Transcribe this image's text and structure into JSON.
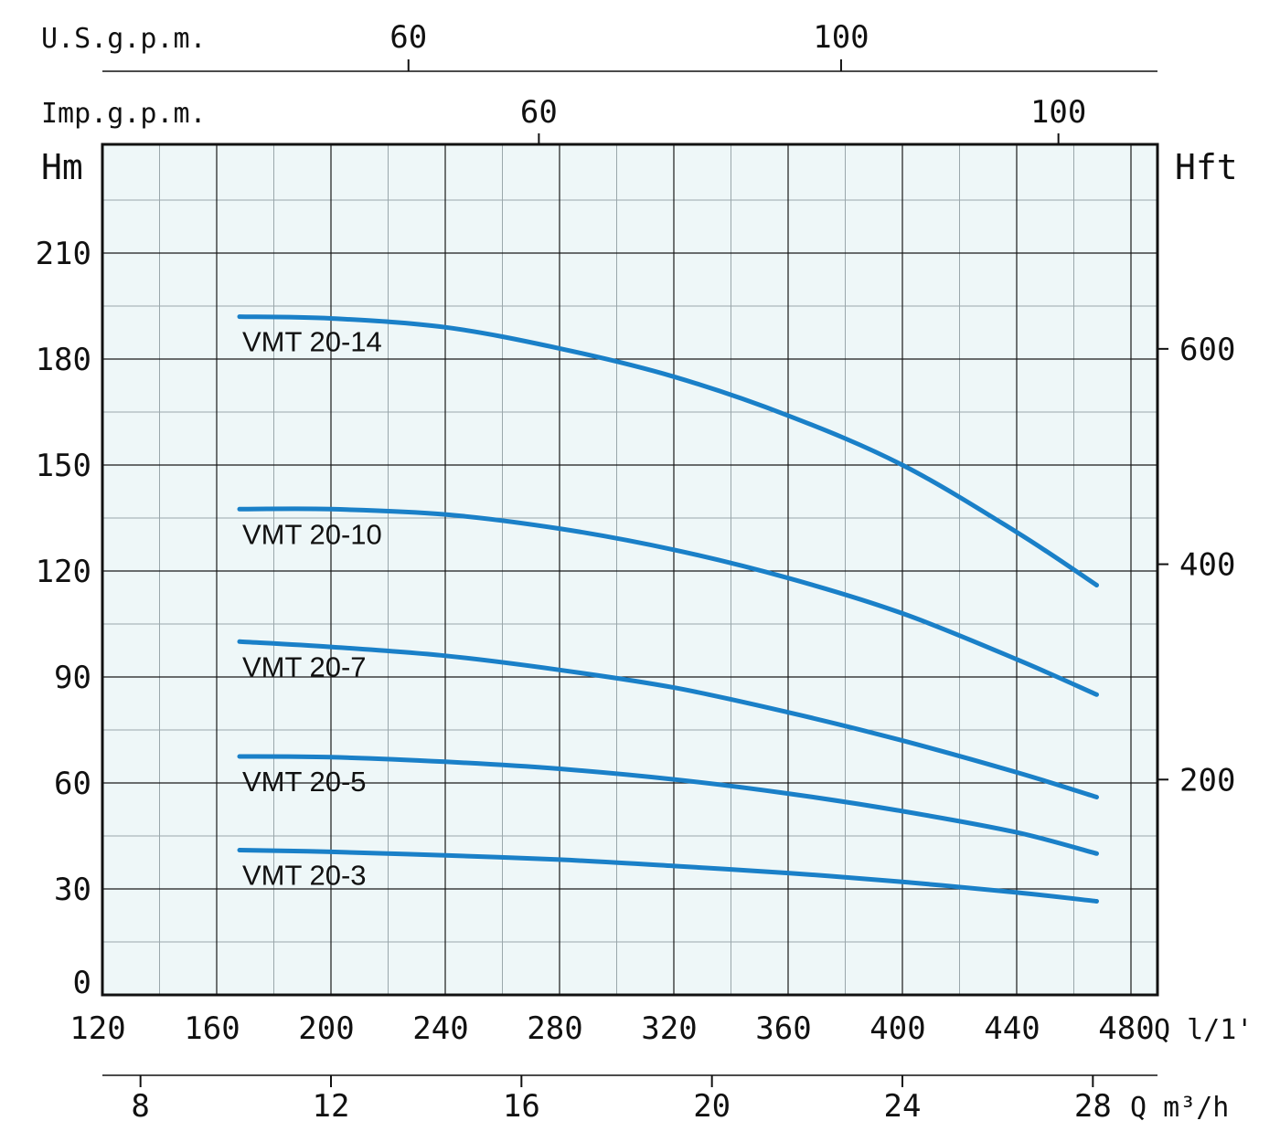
{
  "chart_data": {
    "type": "line",
    "title": "",
    "colors": {
      "curve": "#1a80c8",
      "plot_background": "#eef7f8",
      "grid_major": "#1a1a1a",
      "grid_minor": "#9aa7ab"
    },
    "left_axis": {
      "title": "Hm",
      "ylim": [
        0,
        235
      ],
      "ticks": [
        0,
        30,
        60,
        90,
        120,
        150,
        180,
        210
      ]
    },
    "right_axis": {
      "title": "Hft",
      "ticks": [
        200,
        400,
        600
      ]
    },
    "bottom_axis_lpm": {
      "label": "Q l/1'",
      "xlim": [
        113,
        497
      ],
      "ticks": [
        120,
        160,
        200,
        240,
        280,
        320,
        360,
        400,
        440,
        480
      ]
    },
    "bottom_axis_m3h": {
      "label": "Q m³/h",
      "ticks": [
        8,
        12,
        16,
        20,
        24,
        28
      ]
    },
    "top_axis_usgpm": {
      "label": "U.S.g.p.m.",
      "ticks": [
        60,
        100
      ]
    },
    "top_axis_impgpm": {
      "label": "Imp.g.p.m.",
      "ticks": [
        60,
        100
      ]
    },
    "series": [
      {
        "name": "VMT 20-14",
        "x": [
          168,
          200,
          240,
          280,
          320,
          360,
          400,
          440,
          468
        ],
        "y": [
          192,
          191.5,
          189,
          183,
          175,
          164,
          150,
          131,
          116
        ]
      },
      {
        "name": "VMT 20-10",
        "x": [
          168,
          200,
          240,
          280,
          320,
          360,
          400,
          440,
          468
        ],
        "y": [
          137.5,
          137.5,
          136,
          132,
          126,
          118,
          108,
          95,
          85
        ]
      },
      {
        "name": "VMT 20-7",
        "x": [
          168,
          200,
          240,
          280,
          320,
          360,
          400,
          440,
          468
        ],
        "y": [
          100,
          98.5,
          96,
          92,
          87,
          80,
          72,
          63,
          56
        ]
      },
      {
        "name": "VMT 20-5",
        "x": [
          168,
          200,
          240,
          280,
          320,
          360,
          400,
          440,
          468
        ],
        "y": [
          67.5,
          67.3,
          66,
          64,
          61,
          57,
          52,
          46,
          40
        ]
      },
      {
        "name": "VMT 20-3",
        "x": [
          168,
          200,
          240,
          280,
          320,
          360,
          400,
          440,
          468
        ],
        "y": [
          41,
          40.5,
          39.5,
          38.3,
          36.5,
          34.5,
          32,
          29,
          26.5
        ]
      }
    ]
  }
}
